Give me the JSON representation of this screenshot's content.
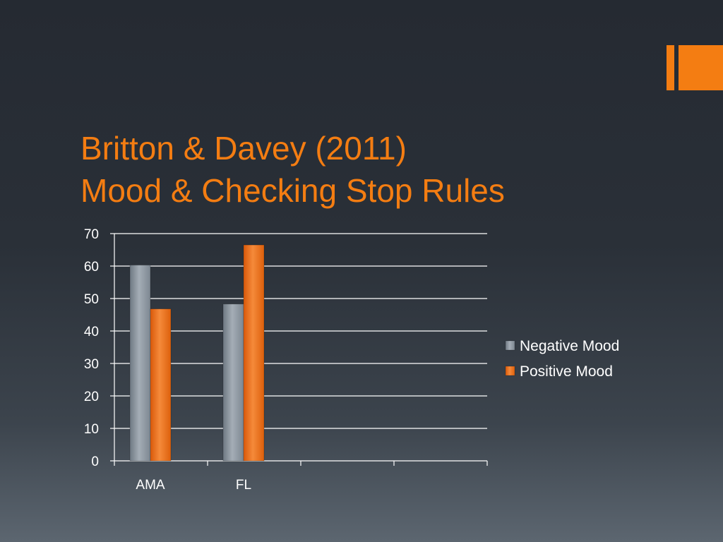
{
  "slide": {
    "title_line1": "Britton & Davey (2011)",
    "title_line2": "Mood & Checking Stop Rules"
  },
  "colors": {
    "accent": "#f47d12",
    "negative_mood": "#8e98a2",
    "positive_mood": "#e8680f"
  },
  "chart_data": {
    "type": "bar",
    "categories": [
      "AMA",
      "FL",
      "",
      ""
    ],
    "series": [
      {
        "name": "Negative Mood",
        "values": [
          60.3,
          48.3,
          null,
          null
        ],
        "color": "#8e98a2"
      },
      {
        "name": "Positive Mood",
        "values": [
          46.8,
          66.5,
          null,
          null
        ],
        "color": "#e8680f"
      }
    ],
    "ylim": [
      0,
      70
    ],
    "yticks": [
      0,
      10,
      20,
      30,
      40,
      50,
      60,
      70
    ],
    "title": "",
    "xlabel": "",
    "ylabel": "",
    "grid": true,
    "legend": "right"
  }
}
